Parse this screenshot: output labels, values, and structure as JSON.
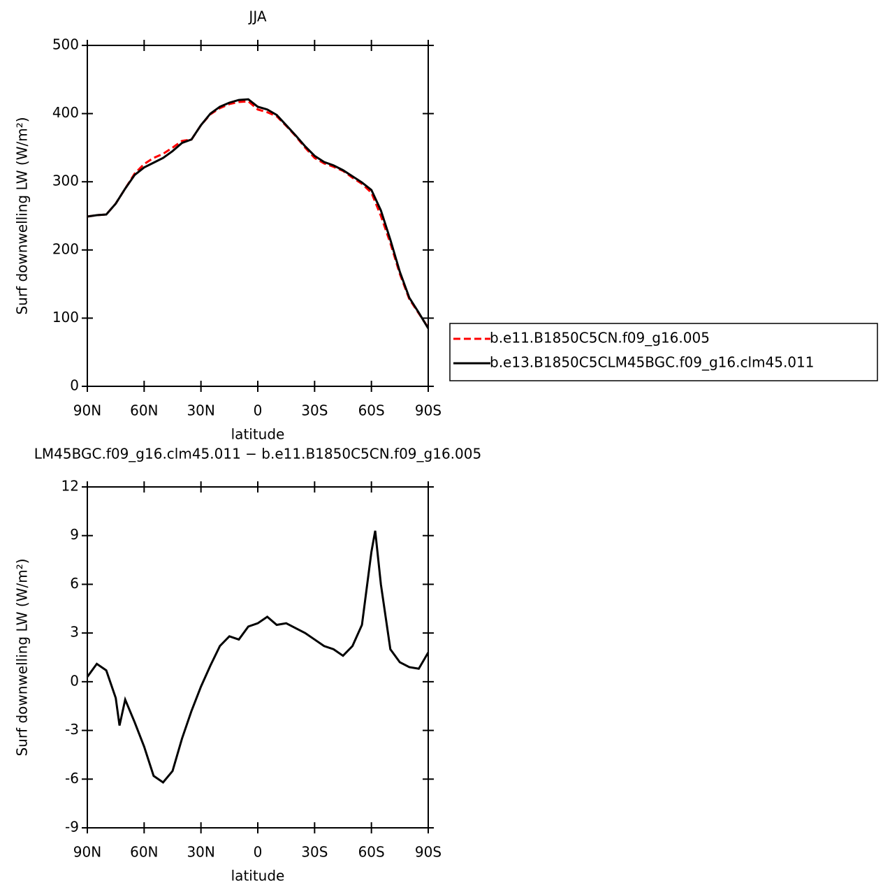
{
  "chart_data": [
    {
      "type": "line",
      "title": "JJA",
      "xlabel": "latitude",
      "ylabel": "Surf downwelling LW (W/m²)",
      "x": [
        90,
        85,
        80,
        75,
        70,
        65,
        60,
        55,
        50,
        45,
        40,
        35,
        30,
        25,
        20,
        15,
        10,
        5,
        0,
        -5,
        -10,
        -15,
        -20,
        -25,
        -30,
        -35,
        -40,
        -45,
        -50,
        -55,
        -60,
        -65,
        -70,
        -75,
        -80,
        -85,
        -90
      ],
      "series": [
        {
          "name": "b.e11.B1850C5CN.f09_g16.005",
          "color": "#ff0000",
          "line_style": "dashed",
          "values": [
            249,
            251,
            252,
            268,
            290,
            312,
            326,
            335,
            341,
            350,
            360,
            362,
            383,
            399,
            408,
            414,
            417,
            418,
            406,
            402,
            396,
            382,
            367,
            350,
            335,
            327,
            322,
            316,
            306,
            297,
            284,
            250,
            210,
            165,
            128,
            107,
            86
          ]
        },
        {
          "name": "b.e13.B1850C5CLM45BGC.f09_g16.clm45.011",
          "color": "#000000",
          "line_style": "solid",
          "values": [
            249,
            251,
            252,
            268,
            290,
            310,
            321,
            328,
            335,
            345,
            357,
            362,
            383,
            400,
            410,
            416,
            420,
            421,
            410,
            406,
            398,
            383,
            368,
            352,
            338,
            329,
            324,
            317,
            308,
            299,
            288,
            258,
            215,
            168,
            130,
            108,
            85
          ]
        }
      ],
      "xlim": [
        90,
        -90
      ],
      "xticks": [
        {
          "value": 90,
          "label": "90N"
        },
        {
          "value": 60,
          "label": "60N"
        },
        {
          "value": 30,
          "label": "30N"
        },
        0,
        {
          "value": -30,
          "label": "30S"
        },
        {
          "value": -60,
          "label": "60S"
        },
        {
          "value": -90,
          "label": "90S"
        }
      ],
      "ylim": [
        0,
        500
      ],
      "yticks": [
        0,
        100,
        200,
        300,
        400,
        500
      ],
      "legend": "right"
    },
    {
      "type": "line",
      "title": "LM45BGC.f09_g16.clm45.011 − b.e11.B1850C5CN.f09_g16.005",
      "xlabel": "latitude",
      "ylabel": "Surf downwelling LW (W/m²)",
      "x": [
        90,
        85,
        80,
        75,
        73,
        70,
        65,
        60,
        55,
        50,
        45,
        40,
        35,
        30,
        25,
        20,
        15,
        10,
        5,
        0,
        -5,
        -10,
        -15,
        -20,
        -25,
        -30,
        -35,
        -40,
        -45,
        -50,
        -55,
        -60,
        -62,
        -65,
        -70,
        -75,
        -80,
        -85,
        -90
      ],
      "series": [
        {
          "color": "#000000",
          "line_style": "solid",
          "values": [
            0.3,
            1.1,
            0.7,
            -1.0,
            -2.7,
            -1.1,
            -2.5,
            -4.0,
            -5.8,
            -6.2,
            -5.5,
            -3.5,
            -1.8,
            -0.3,
            1.0,
            2.2,
            2.8,
            2.6,
            3.4,
            3.6,
            4.0,
            3.5,
            3.6,
            3.3,
            3.0,
            2.6,
            2.2,
            2.0,
            1.6,
            2.2,
            3.5,
            8.0,
            9.3,
            6.0,
            2.0,
            1.2,
            0.9,
            0.8,
            1.8
          ]
        }
      ],
      "xlim": [
        90,
        -90
      ],
      "xticks": [
        {
          "value": 90,
          "label": "90N"
        },
        {
          "value": 60,
          "label": "60N"
        },
        {
          "value": 30,
          "label": "30N"
        },
        0,
        {
          "value": -30,
          "label": "30S"
        },
        {
          "value": -60,
          "label": "60S"
        },
        {
          "value": -90,
          "label": "90S"
        }
      ],
      "ylim": [
        -9,
        12
      ],
      "yticks": [
        -9,
        -6,
        -3,
        0,
        3,
        6,
        9,
        12
      ]
    }
  ]
}
